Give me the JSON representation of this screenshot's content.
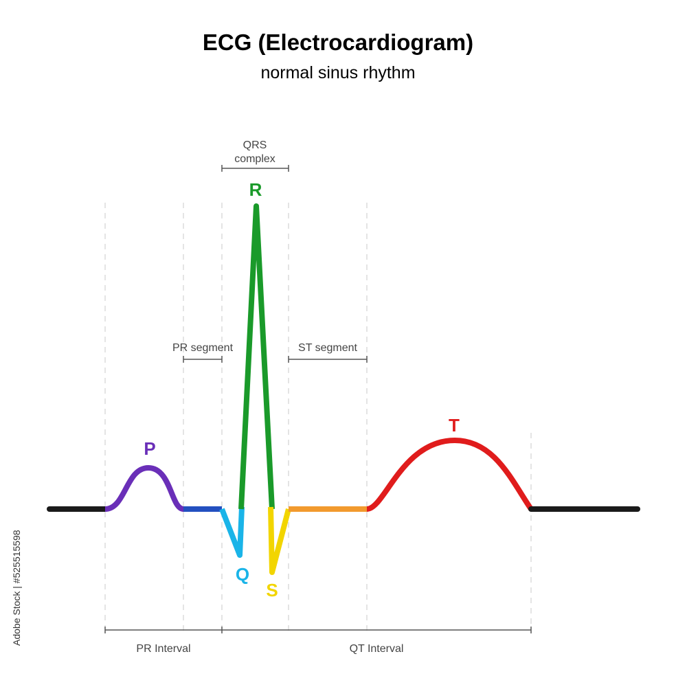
{
  "title": "ECG (Electrocardiogram)",
  "subtitle": "normal sinus rhythm",
  "waves": {
    "p": "P",
    "q": "Q",
    "r": "R",
    "s": "S",
    "t": "T"
  },
  "segments": {
    "qrs_line1": "QRS",
    "qrs_line2": "complex",
    "pr_segment": "PR segment",
    "st_segment": "ST segment",
    "pr_interval": "PR Interval",
    "qt_interval": "QT Interval"
  },
  "watermark": "Adobe Stock | #525515598",
  "colors": {
    "baseline": "#1a1a1a",
    "p_wave": "#6a2fb8",
    "pr_segment": "#2350c0",
    "q_wave": "#1ab4e8",
    "r_wave": "#1a9a2a",
    "s_wave": "#f2d500",
    "st_segment": "#f29a2e",
    "t_wave": "#e01c1c"
  }
}
